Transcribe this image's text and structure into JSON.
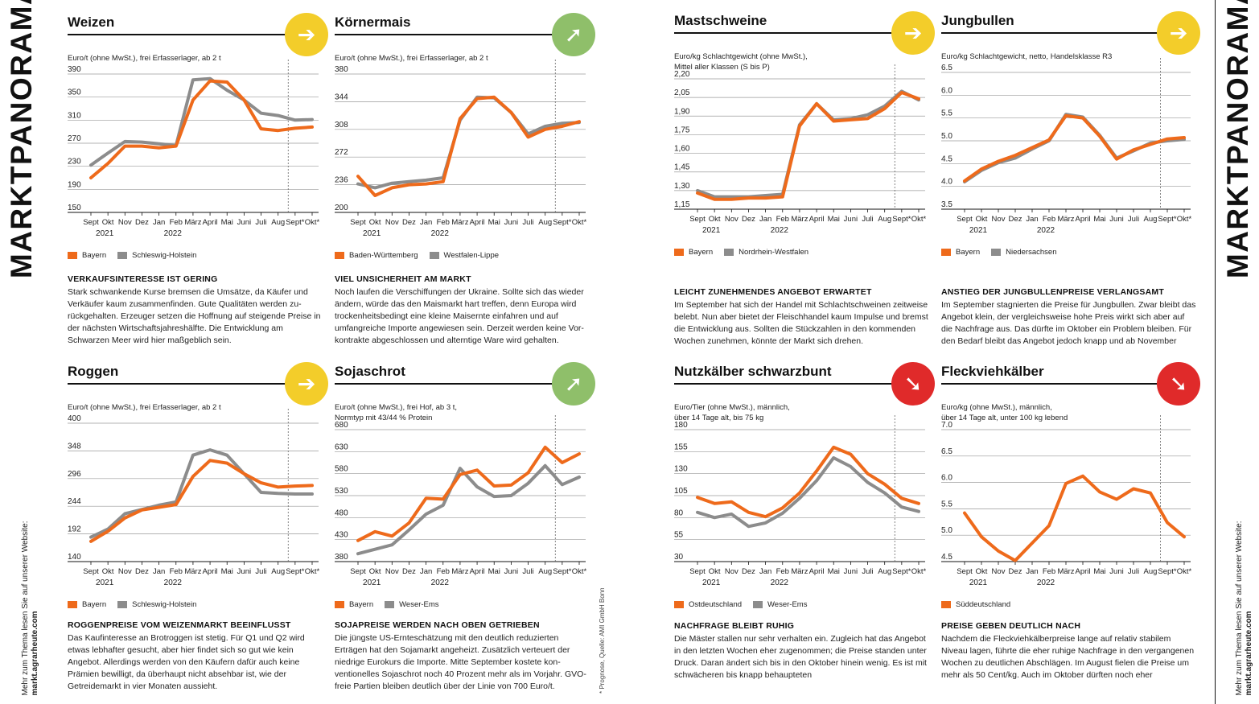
{
  "page": {
    "section_title": "MARKTPANORAMA",
    "website_line1": "Mehr zum Thema lesen Sie auf unserer Website:",
    "website_line2": "markt.agrarheute.com",
    "footnote": "* Prognose, Quelle: AMI GmbH Bonn",
    "colors": {
      "orange": "#ee6a1b",
      "gray": "#8c8c8c",
      "yellow": "#f3cd2a",
      "green": "#8fbf6a",
      "red": "#e02a2a"
    }
  },
  "panels": [
    {
      "title": "Weizen",
      "trend": "sideways",
      "trend_icon": "arrow-right-icon",
      "trend_color": "#f3cd2a",
      "unit_lines": [
        "Euro/t (ohne MwSt.), frei Erfasserlager, ab 2 t"
      ],
      "legend": [
        "Bayern",
        "Schleswig-Holstein"
      ],
      "text_heading": "VERKAUFSINTERESSE IST GERING",
      "text_body": "Stark schwankende Kurse bremsen die Umsätze, da Käufer und Verkäufer kaum zusammenfinden. Gute Qualitäten werden zu­rückgehalten. Erzeuger setzen die Hoffnung auf steigende Preise in der nächsten Wirtschaftsjahreshälfte. Die Entwicklung am Schwarzen Meer wird hier maßgeblich sein."
    },
    {
      "title": "Körnermais",
      "trend": "up",
      "trend_icon": "arrow-up-right-icon",
      "trend_color": "#8fbf6a",
      "unit_lines": [
        "Euro/t (ohne MwSt.), frei Erfasserlager, ab 2 t"
      ],
      "legend": [
        "Baden-Württemberg",
        "Westfalen-Lippe"
      ],
      "text_heading": "VIEL UNSICHERHEIT AM MARKT",
      "text_body": "Noch laufen die Verschiffungen der Ukraine. Sollte sich das wieder ändern, würde das den Maismarkt hart treffen, denn Europa wird trockenheitsbedingt eine kleine Maisernte einfahren und auf umfangreiche Importe angewiesen sein. Derzeit werden keine Vor­kontrakte abgeschlossen und alterntige Ware wird gehalten."
    },
    {
      "title": "Roggen",
      "trend": "sideways",
      "trend_icon": "arrow-right-icon",
      "trend_color": "#f3cd2a",
      "unit_lines": [
        "Euro/t (ohne MwSt.), frei Erfasserlager, ab 2 t"
      ],
      "legend": [
        "Bayern",
        "Schleswig-Holstein"
      ],
      "text_heading": "ROGGENPREISE VOM WEIZENMARKT BEEINFLUSST",
      "text_body": "Das Kaufinteresse an Brotroggen ist stetig. Für Q1 und Q2 wird etwas lebhafter gesucht, aber hier findet sich so gut wie kein Angebot. Allerdings werden von den Käufern dafür auch keine Prämien bewilligt, da überhaupt nicht absehbar ist, wie der Getreidemarkt in vier Monaten aussieht."
    },
    {
      "title": "Sojaschrot",
      "trend": "up",
      "trend_icon": "arrow-up-right-icon",
      "trend_color": "#8fbf6a",
      "unit_lines": [
        "Euro/t (ohne MwSt.), frei Hof, ab 3 t,",
        "Normtyp mit 43/44 % Protein"
      ],
      "legend": [
        "Bayern",
        "Weser-Ems"
      ],
      "text_heading": "SOJAPREISE WERDEN NACH OBEN GETRIEBEN",
      "text_body": "Die jüngste US-Ernteschätzung mit den deutlich reduzierten Erträgen hat den Sojamarkt angeheizt. Zusätzlich verteuert der niedrige Eurokurs die Importe. Mitte September kostete kon­ventionelles Sojaschrot noch 40 Prozent mehr als im Vorjahr. GVO-freie Partien bleiben deutlich über der Linie von 700 Euro/t."
    },
    {
      "title": "Mastschweine",
      "trend": "sideways",
      "trend_icon": "arrow-right-icon",
      "trend_color": "#f3cd2a",
      "unit_lines": [
        "Euro/kg Schlachtgewicht (ohne MwSt.),",
        "Mittel aller Klassen (S bis P)"
      ],
      "legend": [
        "Bayern",
        "Nordrhein-Westfalen"
      ],
      "text_heading": "LEICHT ZUNEHMENDES ANGEBOT ERWARTET",
      "text_body": "Im September hat sich der Handel mit Schlachtschweinen zeit­weise belebt. Nun aber bietet der Fleischhandel kaum Impulse und bremst die Entwicklung aus. Sollten die Stückzahlen in den kommenden Wochen zunehmen, könnte der Markt sich drehen."
    },
    {
      "title": "Jungbullen",
      "trend": "sideways",
      "trend_icon": "arrow-right-icon",
      "trend_color": "#f3cd2a",
      "unit_lines": [
        "Euro/kg Schlachtgewicht, netto, Handelsklasse R3"
      ],
      "legend": [
        "Bayern",
        "Niedersachsen"
      ],
      "text_heading": "ANSTIEG DER JUNGBULLENPREISE VERLANGSAMT",
      "text_body": "Im September stagnierten die Preise für Jungbullen. Zwar bleibt das Angebot klein, der vergleichsweise hohe Preis wirkt sich aber auf die Nachfrage aus. Das dürfte im Oktober ein Problem bleiben. Für den Bedarf bleibt das Angebot jedoch knapp und ab November"
    },
    {
      "title": "Nutzkälber schwarzbunt",
      "trend": "down",
      "trend_icon": "arrow-down-right-icon",
      "trend_color": "#e02a2a",
      "unit_lines": [
        "Euro/Tier (ohne MwSt.),  männlich,",
        "über 14 Tage alt, bis 75 kg"
      ],
      "legend": [
        "Ostdeutschland",
        "Weser-Ems"
      ],
      "text_heading": "NACHFRAGE BLEIBT RUHIG",
      "text_body": "Die Mäster stallen nur sehr verhalten ein. Zugleich hat das Ange­bot in den letzten Wochen eher zugenommen; die Preise standen unter Druck. Daran ändert sich bis in den Oktober hinein wenig. Es ist mit schwächeren bis knapp behaupteten"
    },
    {
      "title": "Fleckviehkälber",
      "trend": "down",
      "trend_icon": "arrow-down-right-icon",
      "trend_color": "#e02a2a",
      "unit_lines": [
        "Euro/kg (ohne MwSt.), männlich,",
        "über 14 Tage alt, unter 100 kg lebend"
      ],
      "legend": [
        "Süddeutschland"
      ],
      "text_heading": "PREISE GEBEN DEUTLICH NACH",
      "text_body": "Nachdem die Fleckviehkälberpreise lange auf relativ stabilem Niveau lagen, führte die eher ruhige Nachfrage in den vergange­nen Wochen zu deutlichen Abschlägen. Im August fielen die Prei­se um mehr als 50 Cent/kg. Auch im Oktober dürften noch eher"
    }
  ],
  "chart_data": [
    {
      "type": "line",
      "title": "Weizen",
      "x": [
        "Sept",
        "Okt",
        "Nov",
        "Dez",
        "Jan",
        "Feb",
        "März",
        "April",
        "Mai",
        "Juni",
        "Juli",
        "Aug",
        "Sept*",
        "Okt*"
      ],
      "year_labels": [
        "2021",
        "2022"
      ],
      "yticks": [
        "390",
        "350",
        "310",
        "270",
        "230",
        "190",
        "150"
      ],
      "ylim": [
        150,
        390
      ],
      "series": [
        {
          "name": "Bayern",
          "color": "#ee6a1b",
          "values": [
            210,
            235,
            265,
            265,
            262,
            265,
            345,
            378,
            376,
            345,
            295,
            292,
            296,
            298
          ]
        },
        {
          "name": "Schleswig-Holstein",
          "color": "#8c8c8c",
          "values": [
            232,
            253,
            273,
            272,
            269,
            266,
            380,
            382,
            362,
            345,
            322,
            318,
            310,
            311
          ]
        }
      ]
    },
    {
      "type": "line",
      "title": "Körnermais",
      "x": [
        "Sept",
        "Okt",
        "Nov",
        "Dez",
        "Jan",
        "Feb",
        "März",
        "April",
        "Mai",
        "Juni",
        "Juli",
        "Aug",
        "Sept*",
        "Okt*"
      ],
      "year_labels": [
        "2021",
        "2022"
      ],
      "yticks": [
        "380",
        "344",
        "308",
        "272",
        "236",
        "200"
      ],
      "ylim": [
        200,
        380
      ],
      "series": [
        {
          "name": "Baden-Württemberg",
          "color": "#ee6a1b",
          "values": [
            247,
            222,
            232,
            236,
            237,
            240,
            322,
            348,
            350,
            330,
            298,
            308,
            312,
            318
          ]
        },
        {
          "name": "Westfalen-Lippe",
          "color": "#8c8c8c",
          "values": [
            237,
            232,
            238,
            240,
            242,
            245,
            320,
            350,
            349,
            330,
            302,
            312,
            316,
            317
          ]
        }
      ]
    },
    {
      "type": "line",
      "title": "Roggen",
      "x": [
        "Sept",
        "Okt",
        "Nov",
        "Dez",
        "Jan",
        "Feb",
        "März",
        "April",
        "Mai",
        "Juni",
        "Juli",
        "Aug",
        "Sept*",
        "Okt*"
      ],
      "year_labels": [
        "2021",
        "2022"
      ],
      "yticks": [
        "400",
        "348",
        "296",
        "244",
        "192",
        "140"
      ],
      "ylim": [
        140,
        400
      ],
      "series": [
        {
          "name": "Bayern",
          "color": "#ee6a1b",
          "values": [
            178,
            197,
            222,
            237,
            242,
            247,
            300,
            330,
            325,
            305,
            288,
            280,
            282,
            283
          ]
        },
        {
          "name": "Schleswig-Holstein",
          "color": "#8c8c8c",
          "values": [
            186,
            201,
            230,
            238,
            246,
            252,
            340,
            350,
            340,
            305,
            270,
            268,
            267,
            267
          ]
        }
      ]
    },
    {
      "type": "line",
      "title": "Sojaschrot",
      "x": [
        "Sept",
        "Okt",
        "Nov",
        "Dez",
        "Jan",
        "Feb",
        "März",
        "April",
        "Mai",
        "Juni",
        "Juli",
        "Aug",
        "Sept*",
        "Okt*"
      ],
      "year_labels": [
        "2021",
        "2022"
      ],
      "yticks": [
        "680",
        "630",
        "580",
        "530",
        "480",
        "430",
        "380"
      ],
      "ylim": [
        380,
        680
      ],
      "series": [
        {
          "name": "Bayern",
          "color": "#ee6a1b",
          "values": [
            428,
            448,
            438,
            468,
            524,
            522,
            578,
            588,
            552,
            554,
            582,
            640,
            605,
            625
          ]
        },
        {
          "name": "Weser-Ems",
          "color": "#8c8c8c",
          "values": [
            398,
            408,
            418,
            452,
            488,
            508,
            592,
            550,
            528,
            530,
            558,
            598,
            555,
            572
          ]
        }
      ]
    },
    {
      "type": "line",
      "title": "Mastschweine",
      "x": [
        "Sept",
        "Okt",
        "Nov",
        "Dez",
        "Jan",
        "Feb",
        "März",
        "April",
        "Mai",
        "Juni",
        "Juli",
        "Aug",
        "Sept*",
        "Okt*"
      ],
      "year_labels": [
        "2021",
        "2022"
      ],
      "yticks": [
        "2,20",
        "2,05",
        "1,90",
        "1,75",
        "1,60",
        "1,45",
        "1,30",
        "1,15"
      ],
      "ylim": [
        1.15,
        2.2
      ],
      "series": [
        {
          "name": "Bayern",
          "color": "#ee6a1b",
          "values": [
            1.28,
            1.23,
            1.23,
            1.24,
            1.24,
            1.25,
            1.82,
            2.0,
            1.86,
            1.87,
            1.88,
            1.96,
            2.09,
            2.04
          ]
        },
        {
          "name": "Nordrhein-Westfalen",
          "color": "#8c8c8c",
          "values": [
            1.3,
            1.25,
            1.25,
            1.25,
            1.26,
            1.27,
            1.83,
            2.0,
            1.87,
            1.88,
            1.91,
            1.98,
            2.1,
            2.03
          ]
        }
      ]
    },
    {
      "type": "line",
      "title": "Jungbullen",
      "x": [
        "Sept",
        "Okt",
        "Nov",
        "Dez",
        "Jan",
        "Feb",
        "März",
        "April",
        "Mai",
        "Juni",
        "Juli",
        "Aug",
        "Sept*",
        "Okt*"
      ],
      "year_labels": [
        "2021",
        "2022"
      ],
      "yticks": [
        "6.5",
        "6.0",
        "5.5",
        "5.0",
        "4.5",
        "4.0",
        "3.5"
      ],
      "ylim": [
        3.5,
        6.5
      ],
      "series": [
        {
          "name": "Bayern",
          "color": "#ee6a1b",
          "values": [
            4.12,
            4.38,
            4.55,
            4.68,
            4.85,
            5.02,
            5.55,
            5.5,
            5.1,
            4.6,
            4.8,
            4.92,
            5.04,
            5.07
          ]
        },
        {
          "name": "Niedersachsen",
          "color": "#8c8c8c",
          "values": [
            4.1,
            4.35,
            4.52,
            4.62,
            4.82,
            5.0,
            5.58,
            5.52,
            5.12,
            4.62,
            4.78,
            4.95,
            5.0,
            5.03
          ]
        }
      ]
    },
    {
      "type": "line",
      "title": "Nutzkälber schwarzbunt",
      "x": [
        "Sept",
        "Okt",
        "Nov",
        "Dez",
        "Jan",
        "Feb",
        "März",
        "April",
        "Mai",
        "Juni",
        "Juli",
        "Aug",
        "Sept*",
        "Okt*"
      ],
      "year_labels": [
        "2021",
        "2022"
      ],
      "yticks": [
        "180",
        "155",
        "130",
        "105",
        "80",
        "55",
        "30"
      ],
      "ylim": [
        30,
        180
      ],
      "series": [
        {
          "name": "Ostdeutschland",
          "color": "#ee6a1b",
          "values": [
            103,
            96,
            98,
            86,
            81,
            91,
            108,
            133,
            160,
            152,
            130,
            118,
            102,
            96
          ]
        },
        {
          "name": "Weser-Ems",
          "color": "#8c8c8c",
          "values": [
            86,
            80,
            84,
            70,
            74,
            85,
            102,
            122,
            148,
            138,
            120,
            108,
            92,
            87
          ]
        }
      ]
    },
    {
      "type": "line",
      "title": "Fleckviehkälber",
      "x": [
        "Sept",
        "Okt",
        "Nov",
        "Dez",
        "Jan",
        "Feb",
        "März",
        "April",
        "Mai",
        "Juni",
        "Juli",
        "Aug",
        "Sept*",
        "Okt*"
      ],
      "year_labels": [
        "2021",
        "2022"
      ],
      "yticks": [
        "7.0",
        "6.5",
        "6.0",
        "5.5",
        "5.0",
        "4.5"
      ],
      "ylim": [
        4.5,
        7.0
      ],
      "series": [
        {
          "name": "Süddeutschland",
          "color": "#ee6a1b",
          "values": [
            5.42,
            4.97,
            4.7,
            4.52,
            4.85,
            5.18,
            5.98,
            6.12,
            5.82,
            5.68,
            5.88,
            5.8,
            5.24,
            4.97
          ]
        }
      ]
    }
  ]
}
